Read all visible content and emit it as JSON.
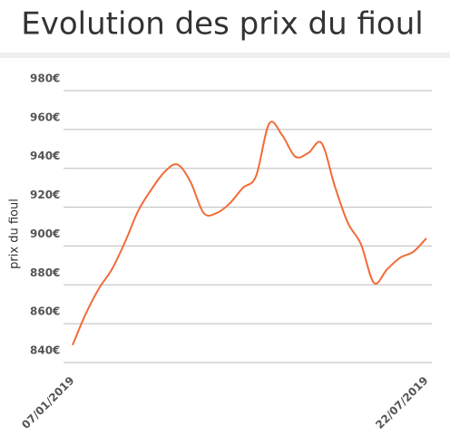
{
  "chart_data": {
    "type": "line",
    "title": "Evolution des prix du fioul",
    "y_label": "prix du fioul",
    "categories": [
      "07/01/2019",
      null,
      null,
      null,
      null,
      null,
      null,
      null,
      null,
      null,
      null,
      null,
      null,
      null,
      null,
      null,
      null,
      null,
      null,
      null,
      null,
      null,
      null,
      null,
      null,
      null,
      null,
      "22/07/2019"
    ],
    "values": [
      849,
      865,
      878,
      888,
      902,
      918,
      929,
      938,
      942,
      933,
      917,
      917,
      922,
      930,
      936,
      963,
      957,
      946,
      948,
      953,
      931,
      912,
      901,
      881,
      888,
      894,
      897,
      904
    ],
    "color": "#f26b38",
    "smooth": true,
    "ylim": [
      838,
      982
    ],
    "yticks": [
      {
        "value": 840,
        "label": "840€"
      },
      {
        "value": 860,
        "label": "860€"
      },
      {
        "value": 880,
        "label": "880€"
      },
      {
        "value": 900,
        "label": "900€"
      },
      {
        "value": 920,
        "label": "920€"
      },
      {
        "value": 940,
        "label": "940€"
      },
      {
        "value": 960,
        "label": "960€"
      },
      {
        "value": 980,
        "label": "980€"
      }
    ],
    "grid": true
  }
}
